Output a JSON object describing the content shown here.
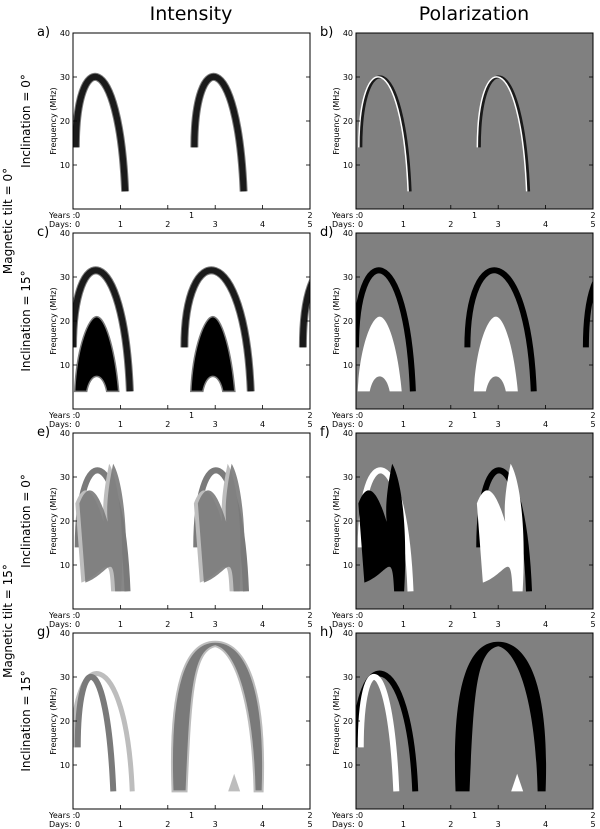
{
  "figure": {
    "col_titles": [
      "Intensity",
      "Polarization"
    ],
    "row_titles": [
      {
        "incl": "Inclination = 0°",
        "tilt": "Magnetic tilt = 0°"
      },
      {
        "incl": "Inclination = 15°",
        "tilt": ""
      },
      {
        "incl": "Inclination = 0°",
        "tilt": "Magnetic tilt = 15°"
      },
      {
        "incl": "Inclination = 15°",
        "tilt": ""
      }
    ],
    "ylabel": "Frequency (MHz)",
    "xlabel_years": "Years",
    "xlabel_days": "Days"
  },
  "chart_data": [
    {
      "panel": "a)",
      "row": 0,
      "col": 0,
      "type": "area",
      "mode": "intensity",
      "xlim": [
        0,
        5
      ],
      "ylim": [
        0,
        40
      ],
      "yticks": [
        10,
        20,
        30,
        40
      ],
      "years_ticks": [
        0,
        1,
        2
      ],
      "days_ticks": [
        0,
        1,
        2,
        3,
        4,
        5
      ],
      "features": [
        {
          "kind": "arc",
          "x_start": 0.06,
          "x_peak": 0.6,
          "x_end": 1.1,
          "f_peak": 35,
          "f_low": 4,
          "style": "dark"
        },
        {
          "kind": "arc",
          "x_start": 2.56,
          "x_peak": 3.1,
          "x_end": 3.6,
          "f_peak": 35,
          "f_low": 4,
          "style": "dark"
        }
      ]
    },
    {
      "panel": "b)",
      "row": 0,
      "col": 1,
      "type": "area",
      "mode": "polarization",
      "xlim": [
        0,
        5
      ],
      "ylim": [
        0,
        40
      ],
      "yticks": [
        10,
        20,
        30,
        40
      ],
      "years_ticks": [
        0,
        1,
        2
      ],
      "days_ticks": [
        0,
        1,
        2,
        3,
        4,
        5
      ],
      "features": [
        {
          "kind": "arc",
          "x_start": 0.06,
          "x_peak": 0.6,
          "x_end": 1.1,
          "f_peak": 35,
          "f_low": 4,
          "style": "thin"
        },
        {
          "kind": "arc",
          "x_start": 2.56,
          "x_peak": 3.1,
          "x_end": 3.6,
          "f_peak": 35,
          "f_low": 4,
          "style": "thin"
        }
      ]
    },
    {
      "panel": "c)",
      "row": 1,
      "col": 0,
      "type": "area",
      "mode": "intensity",
      "xlim": [
        0,
        5
      ],
      "ylim": [
        0,
        40
      ],
      "yticks": [
        10,
        20,
        30,
        40
      ],
      "years_ticks": [
        0,
        1,
        2
      ],
      "days_ticks": [
        0,
        1,
        2,
        3,
        4,
        5
      ],
      "features": [
        {
          "kind": "arc",
          "x_start": 0.0,
          "x_peak": 0.7,
          "x_end": 1.2,
          "f_peak": 37,
          "f_low": 4,
          "style": "dark"
        },
        {
          "kind": "arc",
          "x_start": 2.35,
          "x_peak": 3.15,
          "x_end": 3.75,
          "f_peak": 37,
          "f_low": 4,
          "style": "dark"
        },
        {
          "kind": "arc",
          "x_start": 4.85,
          "x_peak": 5.5,
          "x_end": 6.0,
          "f_peak": 37,
          "f_low": 4,
          "style": "dark"
        },
        {
          "kind": "blob",
          "x_center": 0.5,
          "f_top": 21,
          "f_bottom": 4,
          "style": "black"
        },
        {
          "kind": "blob",
          "x_center": 2.95,
          "f_top": 21,
          "f_bottom": 4,
          "style": "black"
        }
      ]
    },
    {
      "panel": "d)",
      "row": 1,
      "col": 1,
      "type": "area",
      "mode": "polarization",
      "xlim": [
        0,
        5
      ],
      "ylim": [
        0,
        40
      ],
      "yticks": [
        10,
        20,
        30,
        40
      ],
      "years_ticks": [
        0,
        1,
        2
      ],
      "days_ticks": [
        0,
        1,
        2,
        3,
        4,
        5
      ],
      "features": [
        {
          "kind": "arc",
          "x_start": 0.0,
          "x_peak": 0.7,
          "x_end": 1.2,
          "f_peak": 37,
          "f_low": 4,
          "style": "black"
        },
        {
          "kind": "arc",
          "x_start": 2.35,
          "x_peak": 3.15,
          "x_end": 3.75,
          "f_peak": 37,
          "f_low": 4,
          "style": "black"
        },
        {
          "kind": "arc",
          "x_start": 4.85,
          "x_peak": 5.5,
          "x_end": 6.0,
          "f_peak": 37,
          "f_low": 4,
          "style": "black"
        },
        {
          "kind": "blob",
          "x_center": 0.5,
          "f_top": 21,
          "f_bottom": 4,
          "style": "white"
        },
        {
          "kind": "blob",
          "x_center": 2.95,
          "f_top": 21,
          "f_bottom": 4,
          "style": "white"
        }
      ]
    },
    {
      "panel": "e)",
      "row": 2,
      "col": 0,
      "type": "area",
      "mode": "intensity",
      "xlim": [
        0,
        5
      ],
      "ylim": [
        0,
        40
      ],
      "yticks": [
        10,
        20,
        30,
        40
      ],
      "years_ticks": [
        0,
        1,
        2
      ],
      "days_ticks": [
        0,
        1,
        2,
        3,
        4,
        5
      ],
      "features": [
        {
          "kind": "arc",
          "x_start": 0.1,
          "x_peak": 0.45,
          "x_end": 1.15,
          "f_peak": 37,
          "f_low": 4,
          "style": "gray"
        },
        {
          "kind": "arc",
          "x_start": 2.6,
          "x_peak": 2.95,
          "x_end": 3.65,
          "f_peak": 37,
          "f_low": 4,
          "style": "gray"
        },
        {
          "kind": "band",
          "x_start": 0.05,
          "x_end": 1.1,
          "f_peak": 33,
          "f_low": 4,
          "style": "shade"
        },
        {
          "kind": "band",
          "x_start": 2.55,
          "x_end": 3.6,
          "f_peak": 33,
          "f_low": 4,
          "style": "shade"
        }
      ]
    },
    {
      "panel": "f)",
      "row": 2,
      "col": 1,
      "type": "area",
      "mode": "polarization",
      "xlim": [
        0,
        5
      ],
      "ylim": [
        0,
        40
      ],
      "yticks": [
        10,
        20,
        30,
        40
      ],
      "years_ticks": [
        0,
        1,
        2
      ],
      "days_ticks": [
        0,
        1,
        2,
        3,
        4,
        5
      ],
      "features": [
        {
          "kind": "arc",
          "x_start": 0.1,
          "x_peak": 0.45,
          "x_end": 1.15,
          "f_peak": 37,
          "f_low": 4,
          "style": "white"
        },
        {
          "kind": "arc",
          "x_start": 2.6,
          "x_peak": 2.95,
          "x_end": 3.65,
          "f_peak": 37,
          "f_low": 4,
          "style": "black"
        },
        {
          "kind": "band",
          "x_start": 0.05,
          "x_end": 1.1,
          "f_peak": 33,
          "f_low": 4,
          "style": "black"
        },
        {
          "kind": "band",
          "x_start": 2.55,
          "x_end": 3.6,
          "f_peak": 33,
          "f_low": 4,
          "style": "white"
        }
      ]
    },
    {
      "panel": "g)",
      "row": 3,
      "col": 0,
      "type": "area",
      "mode": "intensity",
      "xlim": [
        0,
        5
      ],
      "ylim": [
        0,
        40
      ],
      "yticks": [
        10,
        20,
        30,
        40
      ],
      "years_ticks": [
        0,
        1,
        2
      ],
      "days_ticks": [
        0,
        1,
        2,
        3,
        4,
        5
      ],
      "features": [
        {
          "kind": "arc",
          "x_start": 0.0,
          "x_peak": 0.6,
          "x_end": 1.25,
          "f_peak": 36,
          "f_low": 4,
          "style": "light"
        },
        {
          "kind": "arc",
          "x_start": 0.1,
          "x_peak": 0.45,
          "x_end": 0.85,
          "f_peak": 35,
          "f_low": 4,
          "style": "gray"
        },
        {
          "kind": "dome",
          "x_start": 2.1,
          "x_peak": 3.0,
          "x_end": 4.0,
          "f_peak": 38,
          "f_low": 4,
          "style": "gray"
        },
        {
          "kind": "spike",
          "x_center": 3.4,
          "f_top": 8,
          "style": "light"
        }
      ]
    },
    {
      "panel": "h)",
      "row": 3,
      "col": 1,
      "type": "area",
      "mode": "polarization",
      "xlim": [
        0,
        5
      ],
      "ylim": [
        0,
        40
      ],
      "yticks": [
        10,
        20,
        30,
        40
      ],
      "years_ticks": [
        0,
        1,
        2
      ],
      "days_ticks": [
        0,
        1,
        2,
        3,
        4,
        5
      ],
      "features": [
        {
          "kind": "arc",
          "x_start": 0.0,
          "x_peak": 0.6,
          "x_end": 1.25,
          "f_peak": 36,
          "f_low": 4,
          "style": "black"
        },
        {
          "kind": "arc",
          "x_start": 0.1,
          "x_peak": 0.45,
          "x_end": 0.85,
          "f_peak": 35,
          "f_low": 4,
          "style": "white"
        },
        {
          "kind": "dome",
          "x_start": 2.1,
          "x_peak": 3.0,
          "x_end": 4.0,
          "f_peak": 38,
          "f_low": 4,
          "style": "black"
        },
        {
          "kind": "spike",
          "x_center": 3.4,
          "f_top": 8,
          "style": "white"
        }
      ]
    }
  ],
  "colors": {
    "intensity_bg": "#ffffff",
    "polarization_bg": "#808080",
    "dark": "#1a1a1a",
    "gray": "#7a7a7a",
    "light": "#bdbdbd",
    "black": "#000000",
    "white": "#ffffff"
  }
}
